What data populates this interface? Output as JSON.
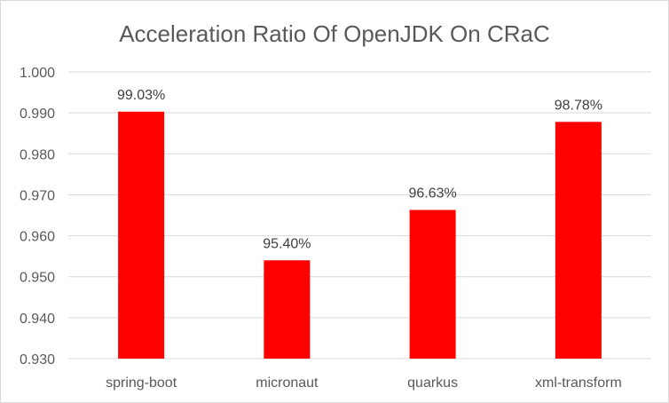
{
  "chart_data": {
    "type": "bar",
    "title": "Acceleration Ratio Of OpenJDK On CRaC",
    "xlabel": "",
    "ylabel": "",
    "categories": [
      "spring-boot",
      "micronaut",
      "quarkus",
      "xml-transform"
    ],
    "values": [
      0.9903,
      0.954,
      0.9663,
      0.9878
    ],
    "data_labels": [
      "99.03%",
      "95.40%",
      "96.63%",
      "98.78%"
    ],
    "ylim": [
      0.93,
      1.0
    ],
    "y_ticks": [
      "0.930",
      "0.940",
      "0.950",
      "0.960",
      "0.970",
      "0.980",
      "0.990",
      "1.000"
    ],
    "grid": true,
    "legend": "none",
    "bar_color": "#ff0000",
    "grid_color": "#d9d9d9",
    "text_color": "#595959"
  }
}
